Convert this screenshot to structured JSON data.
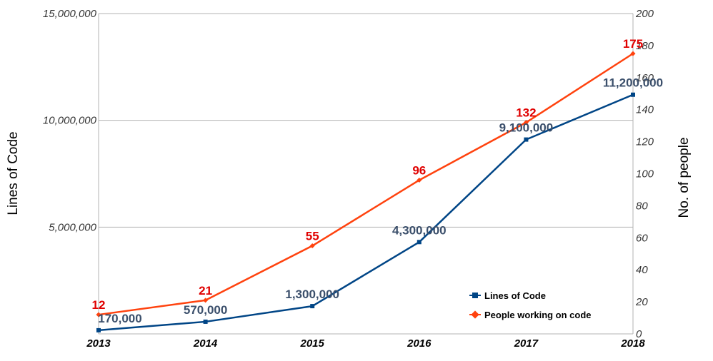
{
  "chart_data": {
    "type": "line",
    "categories": [
      "2013",
      "2014",
      "2015",
      "2016",
      "2017",
      "2018"
    ],
    "series": [
      {
        "name": "Lines of Code",
        "axis": "left",
        "color": "#004586",
        "values": [
          170000,
          570000,
          1300000,
          4300000,
          9100000,
          11200000
        ],
        "labels": [
          "170,000",
          "570,000",
          "1,300,000",
          "4,300,000",
          "9,100,000",
          "11,200,000"
        ]
      },
      {
        "name": "People working on code",
        "axis": "right",
        "color": "#ff420e",
        "values": [
          12,
          21,
          55,
          96,
          132,
          175
        ],
        "labels": [
          "12",
          "21",
          "55",
          "96",
          "132",
          "175"
        ]
      }
    ],
    "y_left": {
      "label": "Lines of Code",
      "range": [
        0,
        15000000
      ],
      "ticks": [
        5000000,
        10000000,
        15000000
      ],
      "tick_labels": [
        "5,000,000",
        "10,000,000",
        "15,000,000"
      ]
    },
    "y_right": {
      "label": "No. of people",
      "range": [
        0,
        200
      ],
      "ticks": [
        0,
        20,
        40,
        60,
        80,
        100,
        120,
        140,
        160,
        180,
        200
      ],
      "tick_labels": [
        "0",
        "20",
        "40",
        "60",
        "80",
        "100",
        "120",
        "140",
        "160",
        "180",
        "200"
      ]
    },
    "grid": "horizontal",
    "legend_position": "bottom-right"
  }
}
